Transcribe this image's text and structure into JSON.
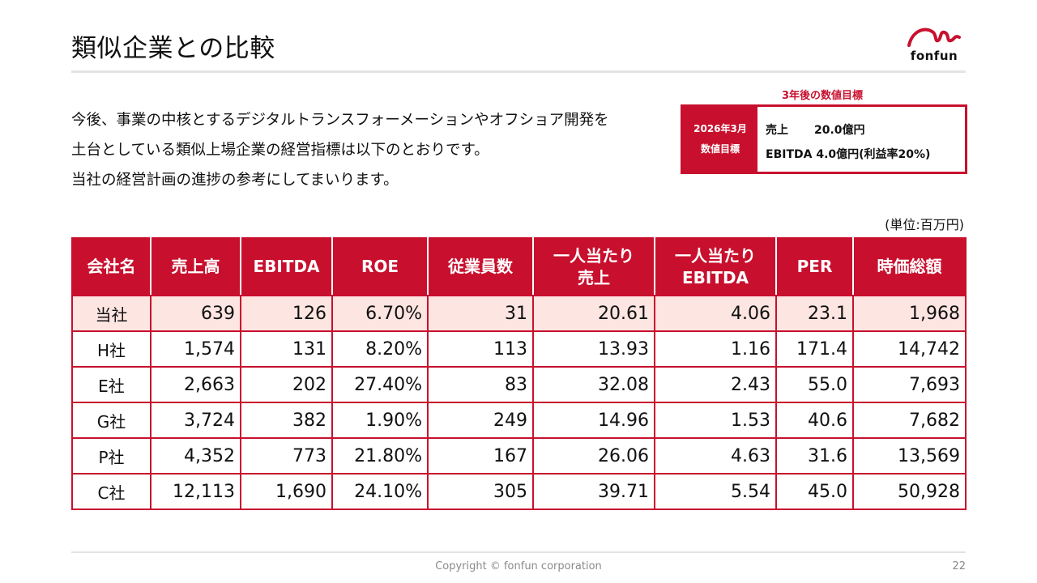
{
  "title": "類似企業との比較",
  "logo": {
    "text": "fonfun"
  },
  "intro": [
    "今後、事業の中核とするデジタルトランスフォーメーションやオフショア開発を",
    "土台としている類似上場企業の経営指標は以下のとおりです。",
    "当社の経営計画の進捗の参考にしてまいります。"
  ],
  "target": {
    "label": "3年後の数値目標",
    "head_line1": "2026年3月",
    "head_line2": "数値目標",
    "sales_key": "売上",
    "sales_value": "20.0億円",
    "ebitda_key": "EBITDA",
    "ebitda_value": "4.0億円(利益率20%)"
  },
  "unit": "(単位:百万円)",
  "table": {
    "headers": [
      "会社名",
      "売上高",
      "EBITDA",
      "ROE",
      "従業員数",
      "一人当たり\n売上",
      "一人当たり\nEBITDA",
      "PER",
      "時価総額"
    ],
    "rows": [
      [
        "当社",
        "639",
        "126",
        "6.70%",
        "31",
        "20.61",
        "4.06",
        "23.1",
        "1,968"
      ],
      [
        "H社",
        "1,574",
        "131",
        "8.20%",
        "113",
        "13.93",
        "1.16",
        "171.4",
        "14,742"
      ],
      [
        "E社",
        "2,663",
        "202",
        "27.40%",
        "83",
        "32.08",
        "2.43",
        "55.0",
        "7,693"
      ],
      [
        "G社",
        "3,724",
        "382",
        "1.90%",
        "249",
        "14.96",
        "1.53",
        "40.6",
        "7,682"
      ],
      [
        "P社",
        "4,352",
        "773",
        "21.80%",
        "167",
        "26.06",
        "4.63",
        "31.6",
        "13,569"
      ],
      [
        "C社",
        "12,113",
        "1,690",
        "24.10%",
        "305",
        "39.71",
        "5.54",
        "45.0",
        "50,928"
      ]
    ]
  },
  "footer": {
    "copyright": "Copyright © fonfun corporation",
    "page": "22"
  },
  "colors": {
    "accent": "#c8102e",
    "own_row": "#fde5e1",
    "rule": "#e3e3e3"
  }
}
